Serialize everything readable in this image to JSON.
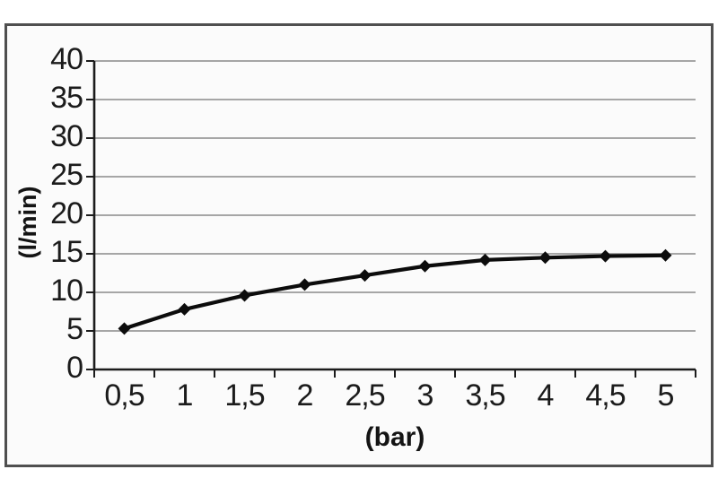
{
  "figure": {
    "background": "#ffffff",
    "frame_border_color": "#4f4f4f",
    "plot_background": "#fbfbfb"
  },
  "chart_data": {
    "type": "line",
    "categories": [
      "0,5",
      "1",
      "1,5",
      "2",
      "2,5",
      "3",
      "3,5",
      "4",
      "4,5",
      "5"
    ],
    "x_numeric": [
      0.5,
      1,
      1.5,
      2,
      2.5,
      3,
      3.5,
      4,
      4.5,
      5
    ],
    "values": [
      5.3,
      7.8,
      9.6,
      11.0,
      12.2,
      13.4,
      14.2,
      14.5,
      14.7,
      14.8
    ],
    "xlabel": "(bar)",
    "ylabel": "(l/min)",
    "ylim": [
      0,
      40
    ],
    "yticks": [
      0,
      5,
      10,
      15,
      20,
      25,
      30,
      35,
      40
    ],
    "ytick_labels": [
      "0",
      "5",
      "10",
      "15",
      "20",
      "25",
      "30",
      "35",
      "40"
    ],
    "grid": "horizontal-only",
    "legend": "none",
    "marker": "diamond",
    "line_color": "#0c0c0c",
    "marker_color": "#0c0c0c",
    "gridline_color": "#8a8a8a",
    "axis_color": "#1c1c1c",
    "tick_label_color": "#1b1b1b"
  }
}
